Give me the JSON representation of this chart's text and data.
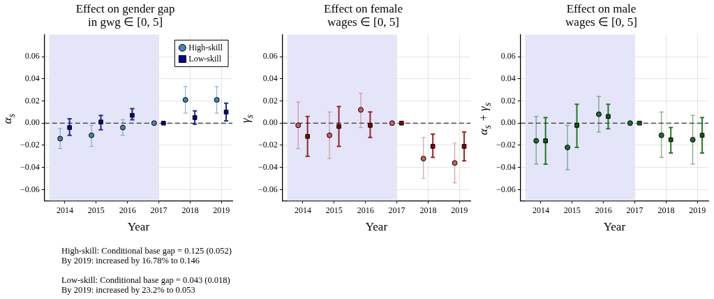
{
  "chart_data": [
    {
      "type": "scatter",
      "title": "Effect on gender gap\nin gwg ∈ [0, 5]",
      "xlabel": "Year",
      "ylabel": "α$_{s}$",
      "xlim": [
        2013.35,
        2019.35
      ],
      "xticks": [
        2014,
        2015,
        2016,
        2017,
        2018,
        2019
      ],
      "ylim": [
        -0.07,
        0.08
      ],
      "yticks": [
        {
          "value": -0.06,
          "label": "−0.06"
        },
        {
          "value": -0.04,
          "label": "−0.04"
        },
        {
          "value": -0.02,
          "label": "−0.02"
        },
        {
          "value": 0,
          "label": "0.00"
        },
        {
          "value": 0.02,
          "label": "0.02"
        },
        {
          "value": 0.04,
          "label": "0.04"
        },
        {
          "value": 0.06,
          "label": "0.06"
        }
      ],
      "grid": true,
      "legend": "top right",
      "bands": [
        {
          "axis": "x",
          "from": 2013.5,
          "to": 2017,
          "color": "#e5e5fa"
        }
      ],
      "ref_lines": [
        {
          "axis": "y",
          "value": 0,
          "color": "#000000",
          "line_style": "dashed"
        }
      ],
      "series": [
        {
          "name": "High-skill",
          "type": "scatter",
          "marker": "circle",
          "color": "#4682b4",
          "x": [
            2013.85,
            2014.85,
            2015.85,
            2016.85,
            2017.85,
            2018.85
          ],
          "values": [
            -0.014,
            -0.011,
            -0.004,
            0,
            0.021,
            0.021
          ],
          "errors": [
            [
              -0.023,
              -0.005
            ],
            [
              -0.021,
              -0.002
            ],
            [
              -0.011,
              0.003
            ],
            null,
            [
              0.009,
              0.033
            ],
            [
              0.009,
              0.033
            ]
          ]
        },
        {
          "name": "Low-skill",
          "type": "scatter",
          "marker": "square",
          "color": "#00008b",
          "x": [
            2014.15,
            2015.15,
            2016.15,
            2017.15,
            2018.15,
            2019.15
          ],
          "values": [
            -0.004,
            0.001,
            0.007,
            0,
            0.005,
            0.01
          ],
          "errors": [
            [
              -0.011,
              0.004
            ],
            [
              -0.006,
              0.007
            ],
            [
              0.003,
              0.013
            ],
            null,
            [
              -0.001,
              0.011
            ],
            [
              0.002,
              0.018
            ]
          ]
        }
      ],
      "annotations": [
        "High-skill: Conditional base gap = 0.125 (0.052)\nBy 2019: increased by 16.78% to 0.146",
        "Low-skill: Conditional base gap = 0.043 (0.018)\nBy 2019: increased by 23.2% to 0.053"
      ]
    },
    {
      "type": "scatter",
      "title": "Effect on female\nwages ∈ [0, 5]",
      "xlabel": "Year",
      "ylabel": "γ$_{s}$",
      "xlim": [
        2013.35,
        2019.35
      ],
      "xticks": [
        2014,
        2015,
        2016,
        2017,
        2018,
        2019
      ],
      "ylim": [
        -0.07,
        0.08
      ],
      "yticks": [
        {
          "value": -0.06,
          "label": "−0.06"
        },
        {
          "value": -0.04,
          "label": "−0.04"
        },
        {
          "value": -0.02,
          "label": "−0.02"
        },
        {
          "value": 0,
          "label": "0.00"
        },
        {
          "value": 0.02,
          "label": "0.02"
        },
        {
          "value": 0.04,
          "label": "0.04"
        },
        {
          "value": 0.06,
          "label": "0.06"
        }
      ],
      "grid": true,
      "bands": [
        {
          "axis": "x",
          "from": 2013.5,
          "to": 2017,
          "color": "#e5e5fa"
        }
      ],
      "ref_lines": [
        {
          "axis": "y",
          "value": 0,
          "color": "#000000",
          "line_style": "dashed"
        }
      ],
      "series": [
        {
          "type": "scatter",
          "marker": "circle",
          "color": "#cd5c5c",
          "x": [
            2013.85,
            2014.85,
            2015.85,
            2016.85,
            2017.85,
            2018.85
          ],
          "values": [
            -0.002,
            -0.011,
            0.012,
            0,
            -0.032,
            -0.036
          ],
          "errors": [
            [
              -0.023,
              0.019
            ],
            [
              -0.032,
              0.01
            ],
            [
              -0.004,
              0.027
            ],
            null,
            [
              -0.05,
              -0.013
            ],
            [
              -0.054,
              -0.018
            ]
          ]
        },
        {
          "type": "scatter",
          "marker": "square",
          "color": "#8b0000",
          "x": [
            2014.15,
            2015.15,
            2016.15,
            2017.15,
            2018.15,
            2019.15
          ],
          "values": [
            -0.012,
            -0.003,
            -0.002,
            0,
            -0.021,
            -0.021
          ],
          "errors": [
            [
              -0.03,
              0.006
            ],
            [
              -0.021,
              0.015
            ],
            [
              -0.013,
              0.01
            ],
            null,
            [
              -0.031,
              -0.01
            ],
            [
              -0.034,
              -0.008
            ]
          ]
        }
      ]
    },
    {
      "type": "scatter",
      "title": "Effect on male\nwages ∈ [0, 5]",
      "xlabel": "Year",
      "ylabel": "α$_{s}$ + γ$_{s}$",
      "xlim": [
        2013.35,
        2019.35
      ],
      "xticks": [
        2014,
        2015,
        2016,
        2017,
        2018,
        2019
      ],
      "ylim": [
        -0.07,
        0.08
      ],
      "yticks": [
        {
          "value": -0.06,
          "label": "−0.06"
        },
        {
          "value": -0.04,
          "label": "−0.04"
        },
        {
          "value": -0.02,
          "label": "−0.02"
        },
        {
          "value": 0,
          "label": "0.00"
        },
        {
          "value": 0.02,
          "label": "0.02"
        },
        {
          "value": 0.04,
          "label": "0.04"
        },
        {
          "value": 0.06,
          "label": "0.06"
        }
      ],
      "grid": true,
      "bands": [
        {
          "axis": "x",
          "from": 2013.5,
          "to": 2017,
          "color": "#e5e5fa"
        }
      ],
      "ref_lines": [
        {
          "axis": "y",
          "value": 0,
          "color": "#000000",
          "line_style": "dashed"
        }
      ],
      "series": [
        {
          "type": "scatter",
          "marker": "circle",
          "color": "#1e6b32",
          "x": [
            2013.85,
            2014.85,
            2015.85,
            2016.85,
            2017.85,
            2018.85
          ],
          "values": [
            -0.016,
            -0.022,
            0.008,
            0,
            -0.011,
            -0.015
          ],
          "errors": [
            [
              -0.037,
              0.006
            ],
            [
              -0.042,
              -0.002
            ],
            [
              -0.008,
              0.024
            ],
            null,
            [
              -0.031,
              0.01
            ],
            [
              -0.037,
              0.007
            ]
          ]
        },
        {
          "type": "scatter",
          "marker": "square",
          "color": "#006400",
          "x": [
            2014.15,
            2015.15,
            2016.15,
            2017.15,
            2018.15,
            2019.15
          ],
          "values": [
            -0.016,
            -0.002,
            0.006,
            0,
            -0.015,
            -0.011
          ],
          "errors": [
            [
              -0.037,
              0.005
            ],
            [
              -0.022,
              0.017
            ],
            [
              -0.005,
              0.017
            ],
            null,
            [
              -0.027,
              -0.004
            ],
            [
              -0.027,
              0.005
            ]
          ]
        }
      ]
    }
  ]
}
